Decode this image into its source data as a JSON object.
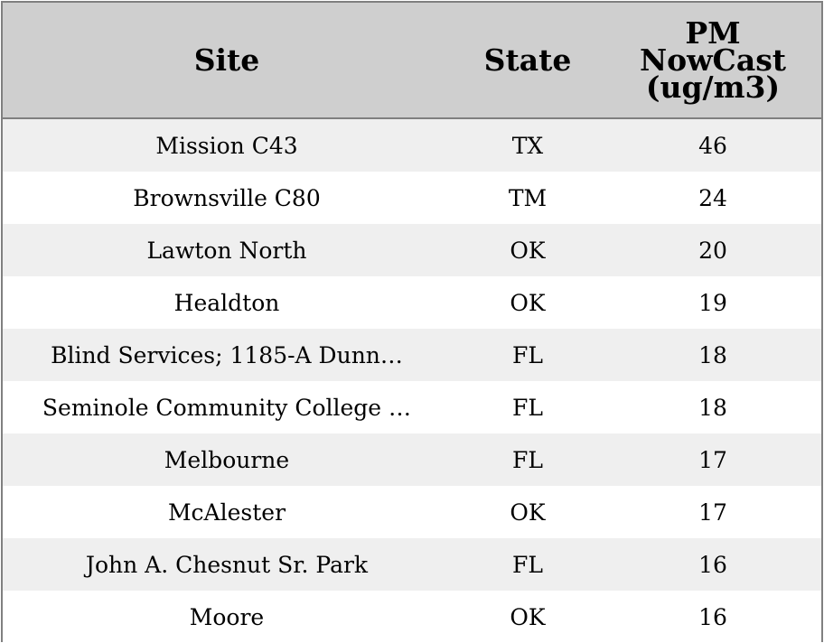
{
  "chart_data": {
    "type": "table",
    "columns": [
      "Site",
      "State",
      "PM\nNowCast\n(ug/m3)"
    ],
    "rows": [
      {
        "site": "Mission C43",
        "state": "TX",
        "pm": "46"
      },
      {
        "site": "Brownsville C80",
        "state": "TM",
        "pm": "24"
      },
      {
        "site": "Lawton North",
        "state": "OK",
        "pm": "20"
      },
      {
        "site": "Healdton",
        "state": "OK",
        "pm": "19"
      },
      {
        "site": "Blind Services; 1185-A Dunn…",
        "state": "FL",
        "pm": "18"
      },
      {
        "site": "Seminole Community College …",
        "state": "FL",
        "pm": "18"
      },
      {
        "site": "Melbourne",
        "state": "FL",
        "pm": "17"
      },
      {
        "site": "McAlester",
        "state": "OK",
        "pm": "17"
      },
      {
        "site": "John A. Chesnut Sr. Park",
        "state": "FL",
        "pm": "16"
      },
      {
        "site": "Moore",
        "state": "OK",
        "pm": "16"
      }
    ]
  },
  "colors": {
    "header_bg": "#cfcfcf",
    "row_stripe": "#efefef",
    "row_plain": "#ffffff",
    "border": "#808080"
  }
}
